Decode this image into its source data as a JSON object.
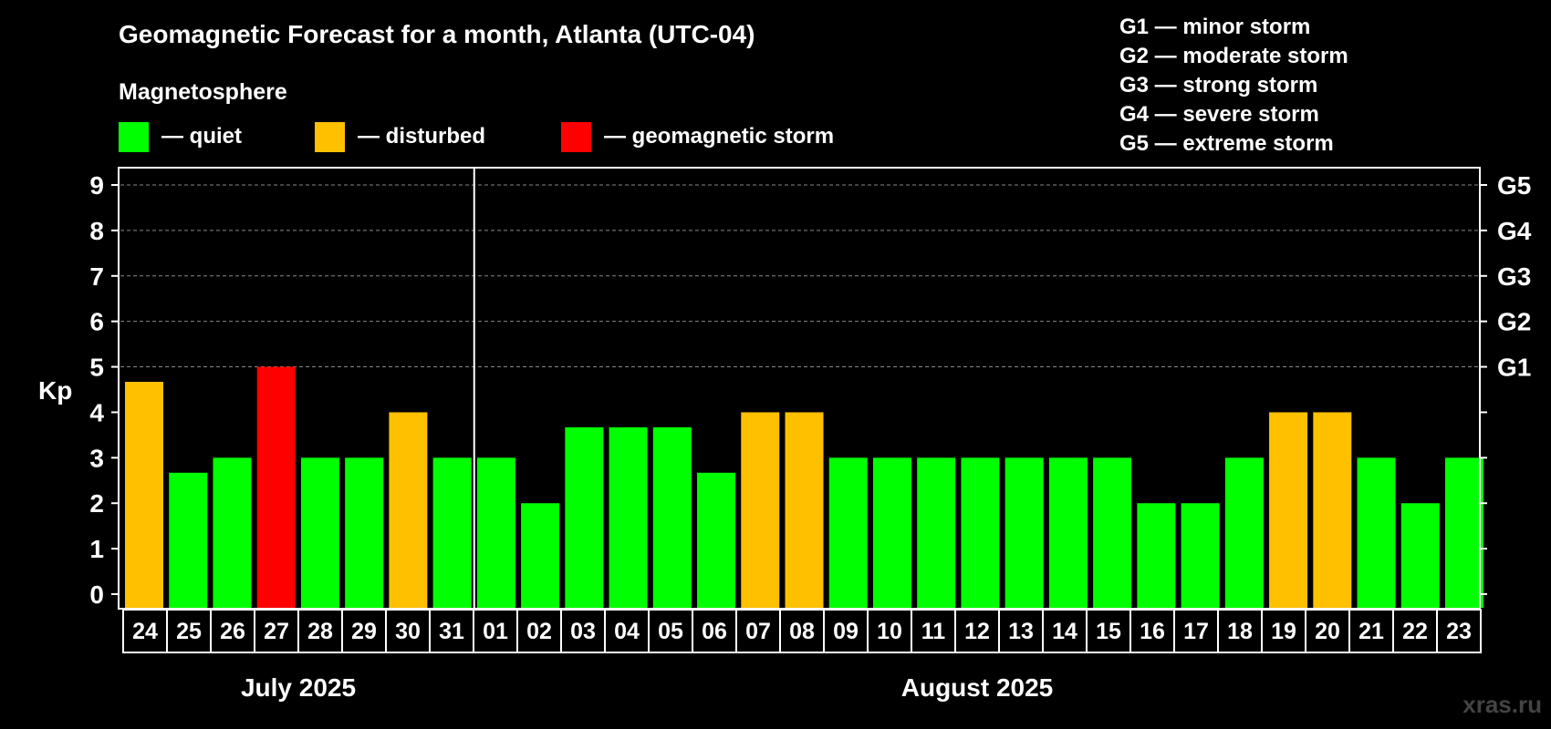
{
  "chart_data": {
    "type": "bar",
    "title": "Geomagnetic Forecast for a month, Atlanta (UTC-04)",
    "legend_heading": "Magnetosphere",
    "legend": [
      {
        "label": "— quiet",
        "color": "#00ff00"
      },
      {
        "label": "— disturbed",
        "color": "#ffc000"
      },
      {
        "label": "— geomagnetic storm",
        "color": "#ff0000"
      }
    ],
    "storm_scale": [
      "G1 — minor storm",
      "G2 — moderate storm",
      "G3 — strong storm",
      "G4 — severe storm",
      "G5 — extreme storm"
    ],
    "ylabel": "Kp",
    "ylim": [
      0,
      9
    ],
    "yticks": [
      "0",
      "1",
      "2",
      "3",
      "4",
      "5",
      "6",
      "7",
      "8",
      "9"
    ],
    "right_ticks": [
      {
        "kp": 5,
        "label": "G1"
      },
      {
        "kp": 6,
        "label": "G2"
      },
      {
        "kp": 7,
        "label": "G3"
      },
      {
        "kp": 8,
        "label": "G4"
      },
      {
        "kp": 9,
        "label": "G5"
      }
    ],
    "categories": [
      "24",
      "25",
      "26",
      "27",
      "28",
      "29",
      "30",
      "31",
      "01",
      "02",
      "03",
      "04",
      "05",
      "06",
      "07",
      "08",
      "09",
      "10",
      "11",
      "12",
      "13",
      "14",
      "15",
      "16",
      "17",
      "18",
      "19",
      "20",
      "21",
      "22",
      "23"
    ],
    "values": [
      4.67,
      2.67,
      3,
      5,
      3,
      3,
      4,
      3,
      3,
      2,
      3.67,
      3.67,
      3.67,
      2.67,
      4,
      4,
      3,
      3,
      3,
      3,
      3,
      3,
      3,
      2,
      2,
      3,
      4,
      4,
      3,
      2,
      3
    ],
    "status": [
      "disturbed",
      "quiet",
      "quiet",
      "storm",
      "quiet",
      "quiet",
      "disturbed",
      "quiet",
      "quiet",
      "quiet",
      "quiet",
      "quiet",
      "quiet",
      "quiet",
      "disturbed",
      "disturbed",
      "quiet",
      "quiet",
      "quiet",
      "quiet",
      "quiet",
      "quiet",
      "quiet",
      "quiet",
      "quiet",
      "quiet",
      "disturbed",
      "disturbed",
      "quiet",
      "quiet",
      "quiet"
    ],
    "status_colors": {
      "quiet": "#00ff00",
      "disturbed": "#ffc000",
      "storm": "#ff0000"
    },
    "month_labels": [
      {
        "label": "July 2025",
        "start_index": 0,
        "count": 8
      },
      {
        "label": "August 2025",
        "start_index": 8,
        "count": 23
      }
    ],
    "grid": true
  },
  "watermark": "xras.ru"
}
